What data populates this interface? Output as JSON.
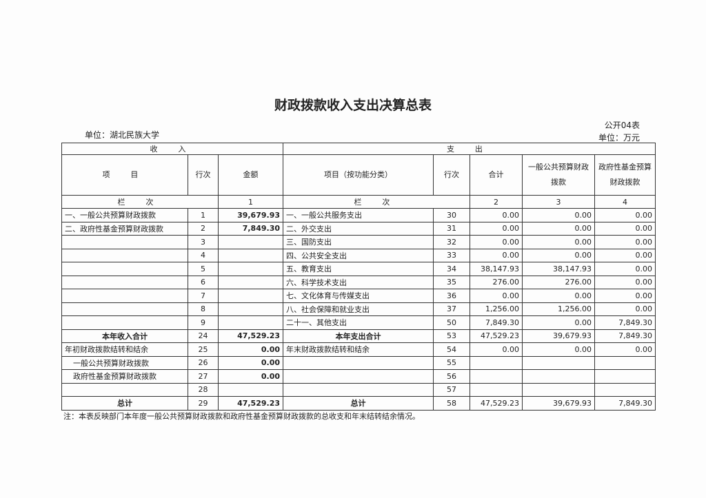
{
  "header": {
    "title": "财政拨款收入支出决算总表",
    "form_no": "公开04表",
    "unit_org": "单位：湖北民族大学",
    "unit_money": "单位：万元"
  },
  "table": {
    "group_headers": [
      "收 入",
      "支 出"
    ],
    "column_headers": [
      "项 目",
      "行次",
      "金额",
      "项目（按功能分类）",
      "行次",
      "合计",
      "一般公共预算财政拨款",
      "政府性基金预算财政拨款"
    ],
    "index_row": [
      "栏 次",
      "1",
      "栏 次",
      "2",
      "3",
      "4"
    ],
    "rows": [
      [
        "一、一般公共预算财政拨款",
        "1",
        "39,679.93",
        "一、一般公共服务支出",
        "30",
        "0.00",
        "0.00",
        "0.00"
      ],
      [
        "二、政府性基金预算财政拨款",
        "2",
        "7,849.30",
        "二、外交支出",
        "31",
        "0.00",
        "0.00",
        "0.00"
      ],
      [
        null,
        "3",
        null,
        "三、国防支出",
        "32",
        "0.00",
        "0.00",
        "0.00"
      ],
      [
        null,
        "4",
        null,
        "四、公共安全支出",
        "33",
        "0.00",
        "0.00",
        "0.00"
      ],
      [
        null,
        "5",
        null,
        "五、教育支出",
        "34",
        "38,147.93",
        "38,147.93",
        "0.00"
      ],
      [
        null,
        "6",
        null,
        "六、科学技术支出",
        "35",
        "276.00",
        "276.00",
        "0.00"
      ],
      [
        null,
        "7",
        null,
        "七、文化体育与传媒支出",
        "36",
        "0.00",
        "0.00",
        "0.00"
      ],
      [
        null,
        "8",
        null,
        "八、社会保障和就业支出",
        "37",
        "1,256.00",
        "1,256.00",
        "0.00"
      ],
      [
        null,
        "9",
        null,
        "二十一、其他支出",
        "50",
        "7,849.30",
        "0.00",
        "7,849.30"
      ],
      [
        "本年收入合计",
        "24",
        "47,529.23",
        "本年支出合计",
        "53",
        "47,529.23",
        "39,679.93",
        "7,849.30"
      ],
      [
        "年初财政拨款结转和结余",
        "25",
        "0.00",
        "年末财政拨款结转和结余",
        "54",
        "0.00",
        "0.00",
        "0.00"
      ],
      [
        "一般公共预算财政拨款",
        "26",
        "0.00",
        null,
        "55",
        null,
        null,
        null
      ],
      [
        "政府性基金预算财政拨款",
        "27",
        "0.00",
        null,
        "56",
        null,
        null,
        null
      ],
      [
        null,
        "28",
        null,
        null,
        "57",
        null,
        null,
        null
      ],
      [
        "总计",
        "29",
        "47,529.23",
        "总计",
        "58",
        "47,529.23",
        "39,679.93",
        "7,849.30"
      ]
    ]
  },
  "note": "注：本表反映部门本年度一般公共预算财政拨款和政府性基金预算财政拨款的总收支和年末结转结余情况。"
}
